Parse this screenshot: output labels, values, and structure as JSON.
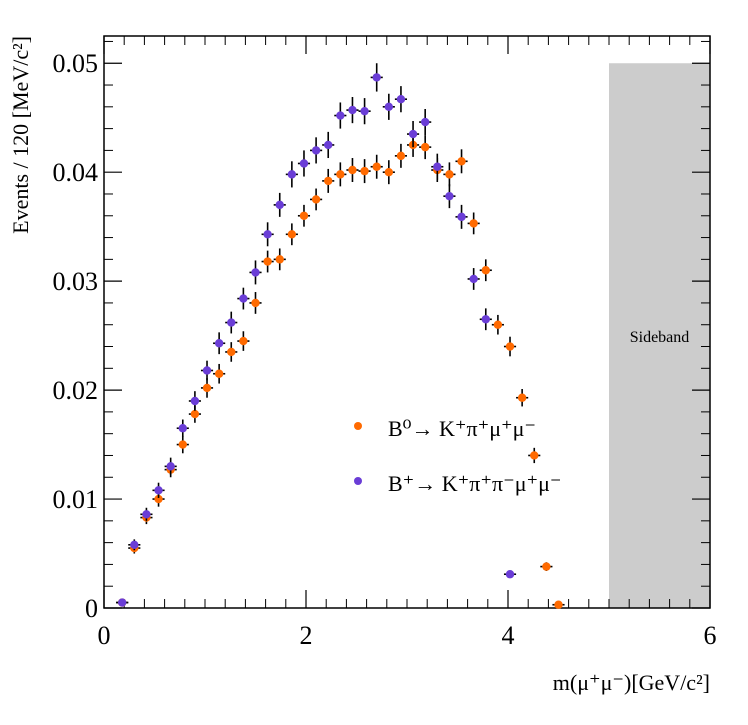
{
  "chart_data": {
    "type": "scatter",
    "xlabel": "m(μ⁺μ⁻)[GeV/c²]",
    "ylabel": "Events / 120 [MeV/c²]",
    "xlim": [
      0,
      6
    ],
    "ylim": [
      0,
      0.0525
    ],
    "x_ticks": [
      0,
      2,
      4,
      6
    ],
    "x_tick_labels": [
      "0",
      "2",
      "4",
      "6"
    ],
    "y_ticks": [
      0,
      0.01,
      0.02,
      0.03,
      0.04,
      0.05
    ],
    "y_tick_labels": [
      "0",
      "0.01",
      "0.02",
      "0.03",
      "0.04",
      "0.05"
    ],
    "sideband": {
      "label": "Sideband",
      "x_range": [
        5.0,
        6.0
      ],
      "y_top": 0.05,
      "color": "#cccccc"
    },
    "legend_position": "center-right",
    "series": [
      {
        "name": "B⁰→ K⁺π⁺μ⁺μ⁻",
        "color": "#ff6a00",
        "x": [
          0.18,
          0.3,
          0.42,
          0.54,
          0.66,
          0.78,
          0.9,
          1.02,
          1.14,
          1.26,
          1.38,
          1.5,
          1.62,
          1.74,
          1.86,
          1.98,
          2.1,
          2.22,
          2.34,
          2.46,
          2.58,
          2.7,
          2.82,
          2.94,
          3.06,
          3.18,
          3.3,
          3.42,
          3.54,
          3.66,
          3.78,
          3.9,
          4.02,
          4.14,
          4.26,
          4.38,
          4.5
        ],
        "y": [
          0.0005,
          0.0055,
          0.0083,
          0.01,
          0.0127,
          0.015,
          0.0178,
          0.0202,
          0.0215,
          0.0235,
          0.0245,
          0.028,
          0.0318,
          0.032,
          0.0343,
          0.036,
          0.0375,
          0.0392,
          0.0398,
          0.0402,
          0.0401,
          0.0405,
          0.04,
          0.0415,
          0.0425,
          0.0423,
          0.0402,
          0.0398,
          0.041,
          0.0353,
          0.031,
          0.026,
          0.024,
          0.0193,
          0.014,
          0.0038,
          0.0003
        ],
        "yerr": [
          0.0002,
          0.0005,
          0.0006,
          0.0007,
          0.0007,
          0.0008,
          0.0008,
          0.0009,
          0.0009,
          0.0009,
          0.0009,
          0.001,
          0.001,
          0.001,
          0.001,
          0.001,
          0.001,
          0.0011,
          0.0011,
          0.0011,
          0.0011,
          0.0011,
          0.0011,
          0.0011,
          0.0011,
          0.0011,
          0.0011,
          0.0011,
          0.0011,
          0.001,
          0.001,
          0.0009,
          0.0009,
          0.0008,
          0.0007,
          0.0004,
          0.0002
        ]
      },
      {
        "name": "B⁺→ K⁺π⁺π⁻μ⁺μ⁻",
        "color": "#6a3dd6",
        "x": [
          0.18,
          0.3,
          0.42,
          0.54,
          0.66,
          0.78,
          0.9,
          1.02,
          1.14,
          1.26,
          1.38,
          1.5,
          1.62,
          1.74,
          1.86,
          1.98,
          2.1,
          2.22,
          2.34,
          2.46,
          2.58,
          2.7,
          2.82,
          2.94,
          3.06,
          3.18,
          3.3,
          3.42,
          3.54,
          3.66,
          3.78,
          4.02
        ],
        "y": [
          0.0005,
          0.0058,
          0.0086,
          0.0108,
          0.013,
          0.0165,
          0.019,
          0.0218,
          0.0243,
          0.0262,
          0.0284,
          0.0308,
          0.0343,
          0.037,
          0.0398,
          0.0408,
          0.042,
          0.0425,
          0.0452,
          0.0457,
          0.0456,
          0.0487,
          0.046,
          0.0467,
          0.0435,
          0.0446,
          0.0405,
          0.0378,
          0.0359,
          0.0302,
          0.0265,
          0.0031
        ],
        "yerr": [
          0.0002,
          0.0005,
          0.0006,
          0.0007,
          0.0008,
          0.0008,
          0.0009,
          0.0009,
          0.001,
          0.001,
          0.001,
          0.0011,
          0.0011,
          0.0011,
          0.0012,
          0.0012,
          0.0012,
          0.0012,
          0.0012,
          0.0012,
          0.0012,
          0.0013,
          0.0012,
          0.0012,
          0.0012,
          0.0012,
          0.0012,
          0.0011,
          0.0011,
          0.001,
          0.001,
          0.0003
        ]
      }
    ]
  }
}
